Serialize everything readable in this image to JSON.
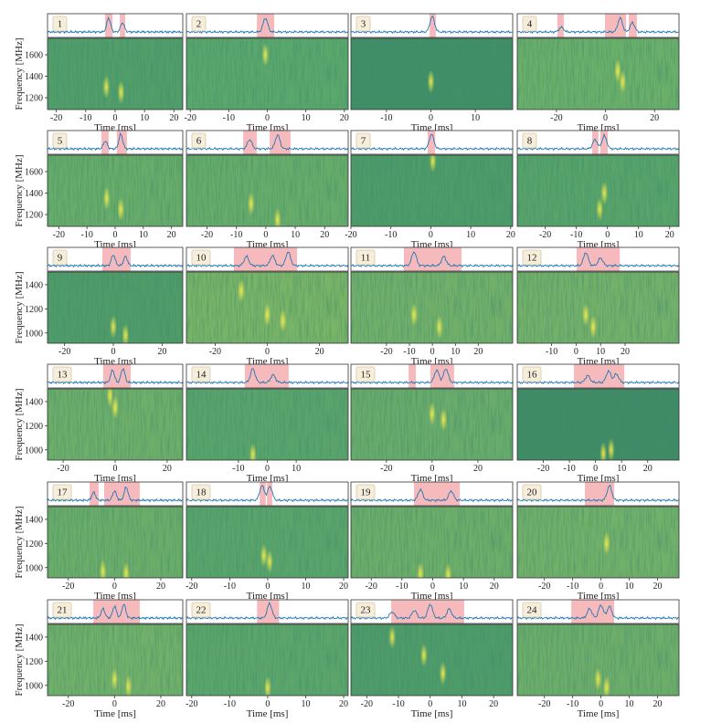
{
  "style": {
    "span_color": "#f4a3a6",
    "line_color": "#1f77b4",
    "burst_color": "#f2ec4c"
  },
  "chart_data": [
    {
      "type": "dynamic_spectrum",
      "label": "1",
      "xlim": [
        -23,
        23
      ],
      "xticks": [
        -20,
        -10,
        0,
        10,
        20
      ],
      "xlabel": "Time [ms]",
      "ylabel": "Frequency [MHz]",
      "ylim": [
        1090,
        1753
      ],
      "yticks": [
        1200,
        1400,
        1600
      ],
      "color": "#529f6a",
      "spans": [
        [
          -3.4,
          -0.9
        ],
        [
          1.6,
          3.4
        ]
      ],
      "peaks": {
        "time": [
          -2.2,
          2.5
        ],
        "amplitude": [
          0.9,
          0.6
        ]
      },
      "bursts": {
        "time": [
          -3,
          2
        ],
        "frequency": [
          1300,
          1250
        ]
      }
    },
    {
      "type": "dynamic_spectrum",
      "label": "2",
      "xlim": [
        -21,
        21
      ],
      "xticks": [
        -20,
        -10,
        0,
        10,
        20
      ],
      "xlabel": "Time [ms]",
      "ylim": [
        1090,
        1753
      ],
      "color": "#5ba86d",
      "spans": [
        [
          -2.7,
          1.8
        ]
      ],
      "peaks": {
        "time": [
          -0.5
        ],
        "amplitude": [
          0.9
        ]
      },
      "bursts": {
        "time": [
          -0.5
        ],
        "frequency": [
          1600
        ]
      }
    },
    {
      "type": "dynamic_spectrum",
      "label": "3",
      "xlim": [
        -18,
        18.4
      ],
      "xticks": [
        -10,
        0,
        10
      ],
      "xlabel": "Time [ms]",
      "ylim": [
        1090,
        1753
      ],
      "color": "#408f68",
      "spans": [
        [
          -0.3,
          1.1
        ]
      ],
      "peaks": {
        "time": [
          0.3
        ],
        "amplitude": [
          1
        ]
      },
      "bursts": {
        "time": [
          0
        ],
        "frequency": [
          1350
        ]
      }
    },
    {
      "type": "dynamic_spectrum",
      "label": "4",
      "xlim": [
        -36,
        30
      ],
      "xticks": [
        -20,
        0,
        20
      ],
      "xlabel": "Time [ms]",
      "ylim": [
        1090,
        1753
      ],
      "color": "#6bb06a",
      "spans": [
        [
          -19.6,
          -17
        ],
        [
          -0.2,
          8.4
        ],
        [
          9.5,
          12.8
        ]
      ],
      "peaks": {
        "time": [
          -18,
          6,
          11
        ],
        "amplitude": [
          0.3,
          0.9,
          0.6
        ]
      },
      "bursts": {
        "time": [
          5,
          7
        ],
        "frequency": [
          1450,
          1350
        ]
      }
    },
    {
      "type": "dynamic_spectrum",
      "label": "5",
      "xlim": [
        -24,
        24
      ],
      "xticks": [
        -20,
        -10,
        0,
        10,
        20
      ],
      "xlabel": "Time [ms]",
      "ylabel": "Frequency [MHz]",
      "ylim": [
        1090,
        1753
      ],
      "yticks": [
        1200,
        1400,
        1600
      ],
      "color": "#68ad6a",
      "spans": [
        [
          -4.9,
          -2.3
        ],
        [
          0.6,
          4.2
        ]
      ],
      "peaks": {
        "time": [
          -3.5,
          2
        ],
        "amplitude": [
          0.5,
          0.95
        ]
      },
      "bursts": {
        "time": [
          -3,
          2
        ],
        "frequency": [
          1350,
          1250
        ]
      }
    },
    {
      "type": "dynamic_spectrum",
      "label": "6",
      "xlim": [
        -27,
        28
      ],
      "xticks": [
        -20,
        -10,
        0,
        10,
        20
      ],
      "xlabel": "Time [ms]",
      "ylim": [
        1090,
        1753
      ],
      "color": "#67ad6a",
      "spans": [
        [
          -7.7,
          -3.1
        ],
        [
          1.3,
          8.4
        ]
      ],
      "peaks": {
        "time": [
          -5.5,
          4
        ],
        "amplitude": [
          0.6,
          0.9
        ]
      },
      "bursts": {
        "time": [
          -5,
          4
        ],
        "frequency": [
          1300,
          1150
        ]
      }
    },
    {
      "type": "dynamic_spectrum",
      "label": "7",
      "xlim": [
        -20,
        20.5
      ],
      "xticks": [
        -20,
        -10,
        0,
        10,
        20
      ],
      "xlabel": "Time [ms]",
      "ylim": [
        1090,
        1753
      ],
      "color": "#4d9c69",
      "spans": [
        [
          -0.8,
          1.1
        ]
      ],
      "peaks": {
        "time": [
          0.2
        ],
        "amplitude": [
          0.95
        ]
      },
      "bursts": {
        "time": [
          0.5
        ],
        "frequency": [
          1700
        ]
      }
    },
    {
      "type": "dynamic_spectrum",
      "label": "8",
      "xlim": [
        -29,
        23
      ],
      "xticks": [
        -20,
        -10,
        0,
        10,
        20
      ],
      "xlabel": "Time [ms]",
      "ylim": [
        1090,
        1753
      ],
      "color": "#58a46a",
      "spans": [
        [
          -4.9,
          -2.9
        ],
        [
          -2.3,
          0.1
        ]
      ],
      "peaks": {
        "time": [
          -4,
          -1
        ],
        "amplitude": [
          0.6,
          0.85
        ]
      },
      "bursts": {
        "time": [
          -1,
          -2.5
        ],
        "frequency": [
          1400,
          1250
        ]
      }
    },
    {
      "type": "dynamic_spectrum",
      "label": "9",
      "xlim": [
        -27,
        28.5
      ],
      "xticks": [
        -20,
        0,
        20
      ],
      "xlabel": "Time [ms]",
      "ylabel": "Frequency [MHz]",
      "ylim": [
        915,
        1505
      ],
      "yticks": [
        1000,
        1200,
        1400
      ],
      "color": "#509c69",
      "spans": [
        [
          -4.5,
          7.1
        ]
      ],
      "peaks": {
        "time": [
          0,
          5
        ],
        "amplitude": [
          0.7,
          0.6
        ]
      },
      "bursts": {
        "time": [
          0,
          5
        ],
        "frequency": [
          1050,
          980
        ]
      }
    },
    {
      "type": "dynamic_spectrum",
      "label": "10",
      "xlim": [
        -31,
        31
      ],
      "xticks": [
        -20,
        0,
        20
      ],
      "xlabel": "Time [ms]",
      "ylim": [
        915,
        1505
      ],
      "color": "#79b467",
      "spans": [
        [
          -12.8,
          11.4
        ]
      ],
      "peaks": {
        "time": [
          -8,
          2,
          8
        ],
        "amplitude": [
          0.6,
          0.65,
          0.9
        ]
      },
      "bursts": {
        "time": [
          -10,
          0,
          6
        ],
        "frequency": [
          1350,
          1150,
          1100
        ]
      }
    },
    {
      "type": "dynamic_spectrum",
      "label": "11",
      "xlim": [
        -35.5,
        35
      ],
      "xticks": [
        -20,
        -10,
        0,
        10,
        20
      ],
      "xlabel": "Time [ms]",
      "ylim": [
        915,
        1505
      ],
      "color": "#72b06a",
      "spans": [
        [
          -12.4,
          12.7
        ]
      ],
      "peaks": {
        "time": [
          -8,
          5
        ],
        "amplitude": [
          0.9,
          0.6
        ]
      },
      "bursts": {
        "time": [
          -8,
          3
        ],
        "frequency": [
          1150,
          1050
        ]
      }
    },
    {
      "type": "dynamic_spectrum",
      "label": "12",
      "xlim": [
        -24,
        42
      ],
      "xticks": [
        -10,
        0,
        10,
        20
      ],
      "xlabel": "Time [ms]",
      "ylim": [
        915,
        1505
      ],
      "color": "#74b16a",
      "spans": [
        [
          0.2,
          17.8
        ]
      ],
      "peaks": {
        "time": [
          4,
          10
        ],
        "amplitude": [
          0.85,
          0.5
        ]
      },
      "bursts": {
        "time": [
          4,
          7
        ],
        "frequency": [
          1150,
          1050
        ]
      }
    },
    {
      "type": "dynamic_spectrum",
      "label": "13",
      "xlim": [
        -26,
        26
      ],
      "xticks": [
        -20,
        0,
        20
      ],
      "xlabel": "Time [ms]",
      "ylabel": "Frequency [MHz]",
      "ylim": [
        915,
        1505
      ],
      "yticks": [
        1000,
        1200,
        1400
      ],
      "color": "#6eaf69",
      "spans": [
        [
          -4.6,
          6
        ]
      ],
      "peaks": {
        "time": [
          -1,
          3
        ],
        "amplitude": [
          0.8,
          0.9
        ]
      },
      "bursts": {
        "time": [
          -2,
          0
        ],
        "frequency": [
          1450,
          1350
        ]
      }
    },
    {
      "type": "dynamic_spectrum",
      "label": "14",
      "xlim": [
        -28,
        28
      ],
      "xticks": [
        -10,
        0,
        10
      ],
      "xlabel": "Time [ms]",
      "ylim": [
        915,
        1505
      ],
      "color": "#5aa46c",
      "spans": [
        [
          -7.8,
          7.4
        ]
      ],
      "peaks": {
        "time": [
          -5,
          2
        ],
        "amplitude": [
          0.9,
          0.5
        ]
      },
      "bursts": {
        "time": [
          -5
        ],
        "frequency": [
          960
        ]
      }
    },
    {
      "type": "dynamic_spectrum",
      "label": "15",
      "xlim": [
        -35.5,
        35.2
      ],
      "xticks": [
        -20,
        0,
        20
      ],
      "xlabel": "Time [ms]",
      "ylim": [
        915,
        1505
      ],
      "color": "#6aac6b",
      "spans": [
        [
          -10.3,
          -7.1
        ],
        [
          -0.8,
          9.6
        ]
      ],
      "peaks": {
        "time": [
          2,
          6
        ],
        "amplitude": [
          0.8,
          0.9
        ]
      },
      "bursts": {
        "time": [
          0,
          5
        ],
        "frequency": [
          1300,
          1250
        ]
      }
    },
    {
      "type": "dynamic_spectrum",
      "label": "16",
      "xlim": [
        -30,
        32
      ],
      "xticks": [
        -20,
        -10,
        0,
        10,
        20
      ],
      "xlabel": "Time [ms]",
      "ylim": [
        915,
        1505
      ],
      "color": "#3f8c66",
      "spans": [
        [
          -8.3,
          11
        ]
      ],
      "peaks": {
        "time": [
          -3,
          5,
          8
        ],
        "amplitude": [
          0.45,
          0.75,
          0.55
        ]
      },
      "bursts": {
        "time": [
          3,
          6
        ],
        "frequency": [
          970,
          1000
        ]
      }
    },
    {
      "type": "dynamic_spectrum",
      "label": "17",
      "xlim": [
        -29,
        29.5
      ],
      "xticks": [
        -20,
        0,
        20
      ],
      "xlabel": "Time [ms]",
      "ylabel": "Frequency [MHz]",
      "ylim": [
        915,
        1505
      ],
      "yticks": [
        1000,
        1200,
        1400
      ],
      "color": "#6cae69",
      "spans": [
        [
          -10.8,
          -6.9
        ],
        [
          -4.5,
          10.9
        ]
      ],
      "peaks": {
        "time": [
          -9,
          0,
          5
        ],
        "amplitude": [
          0.5,
          0.6,
          0.85
        ]
      },
      "bursts": {
        "time": [
          -5,
          5
        ],
        "frequency": [
          970,
          950
        ]
      }
    },
    {
      "type": "dynamic_spectrum",
      "label": "18",
      "xlim": [
        -21.4,
        21.2
      ],
      "xticks": [
        -20,
        -10,
        0,
        10,
        20
      ],
      "xlabel": "Time [ms]",
      "ylim": [
        915,
        1505
      ],
      "color": "#5aa56b",
      "spans": [
        [
          -2.1,
          -0.5
        ],
        [
          -0.2,
          1.2
        ]
      ],
      "peaks": {
        "time": [
          -1.5,
          0.6
        ],
        "amplitude": [
          0.95,
          0.9
        ]
      },
      "bursts": {
        "time": [
          -1,
          0.5
        ],
        "frequency": [
          1100,
          1050
        ]
      }
    },
    {
      "type": "dynamic_spectrum",
      "label": "19",
      "xlim": [
        -26.6,
        26
      ],
      "xticks": [
        -20,
        -10,
        0,
        10,
        20
      ],
      "xlabel": "Time [ms]",
      "ylim": [
        915,
        1505
      ],
      "color": "#6dae69",
      "spans": [
        [
          -6.1,
          8.8
        ]
      ],
      "peaks": {
        "time": [
          -4,
          6
        ],
        "amplitude": [
          0.7,
          0.6
        ]
      },
      "bursts": {
        "time": [
          -4,
          5
        ],
        "frequency": [
          950,
          940
        ]
      }
    },
    {
      "type": "dynamic_spectrum",
      "label": "20",
      "xlim": [
        -29.6,
        27.6
      ],
      "xticks": [
        -20,
        -10,
        0,
        10,
        20
      ],
      "xlabel": "Time [ms]",
      "ylim": [
        915,
        1505
      ],
      "color": "#72b16a",
      "spans": [
        [
          -5.7,
          4.7
        ]
      ],
      "peaks": {
        "time": [
          3
        ],
        "amplitude": [
          0.95
        ]
      },
      "bursts": {
        "time": [
          2
        ],
        "frequency": [
          1200
        ]
      }
    },
    {
      "type": "dynamic_spectrum",
      "label": "21",
      "xlim": [
        -29,
        29.5
      ],
      "xticks": [
        -20,
        0,
        20
      ],
      "xlabel": "Time [ms]",
      "ylabel": "Frequency [MHz]",
      "ylim": [
        915,
        1505
      ],
      "yticks": [
        1000,
        1200,
        1400
      ],
      "color": "#72b16a",
      "spans": [
        [
          -9.2,
          10.9
        ]
      ],
      "peaks": {
        "time": [
          -5,
          0,
          4
        ],
        "amplitude": [
          0.6,
          0.75,
          0.9
        ]
      },
      "bursts": {
        "time": [
          0,
          6
        ],
        "frequency": [
          1050,
          990
        ]
      }
    },
    {
      "type": "dynamic_spectrum",
      "label": "22",
      "xlim": [
        -21.4,
        21.2
      ],
      "xticks": [
        -20,
        -10,
        0,
        10,
        20
      ],
      "xlabel": "Time [ms]",
      "ylim": [
        915,
        1505
      ],
      "color": "#5ca66b",
      "spans": [
        [
          -2.8,
          3
        ]
      ],
      "peaks": {
        "time": [
          0.5
        ],
        "amplitude": [
          0.95
        ]
      },
      "bursts": {
        "time": [
          0
        ],
        "frequency": [
          980
        ]
      }
    },
    {
      "type": "dynamic_spectrum",
      "label": "23",
      "xlim": [
        -25,
        26
      ],
      "xticks": [
        -20,
        -10,
        0,
        10,
        20
      ],
      "xlabel": "Time [ms]",
      "ylim": [
        915,
        1505
      ],
      "color": "#4f9c6a",
      "spans": [
        [
          -12.3,
          10.7
        ]
      ],
      "peaks": {
        "time": [
          -12,
          -5,
          0,
          6
        ],
        "amplitude": [
          0.4,
          0.5,
          0.9,
          0.6
        ]
      },
      "bursts": {
        "time": [
          -12,
          -2,
          4
        ],
        "frequency": [
          1400,
          1250,
          1100
        ]
      }
    },
    {
      "type": "dynamic_spectrum",
      "label": "24",
      "xlim": [
        -29.6,
        27.6
      ],
      "xticks": [
        -20,
        -10,
        0,
        10,
        20
      ],
      "xlabel": "Time [ms]",
      "ylim": [
        915,
        1505
      ],
      "color": "#6eae6a",
      "spans": [
        [
          -10.5,
          4.7
        ]
      ],
      "peaks": {
        "time": [
          -4,
          0,
          3
        ],
        "amplitude": [
          0.6,
          0.85,
          0.75
        ]
      },
      "bursts": {
        "time": [
          -1,
          2
        ],
        "frequency": [
          1050,
          980
        ]
      }
    }
  ]
}
